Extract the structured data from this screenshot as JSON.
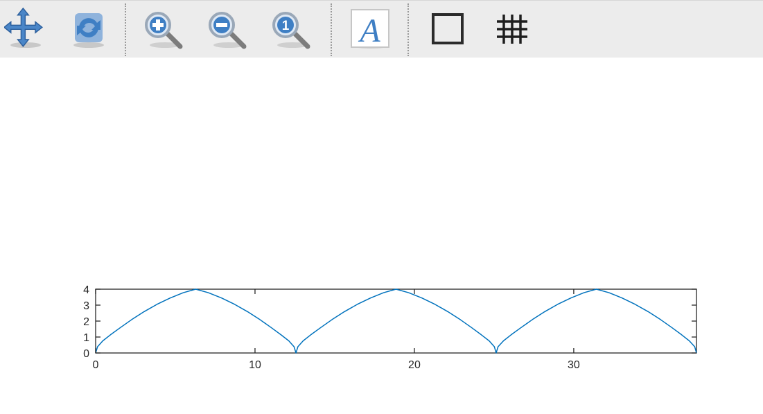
{
  "toolbar": {
    "tools": [
      {
        "id": "pan",
        "icon": "pan-arrows-icon"
      },
      {
        "id": "rotate",
        "icon": "rotate-arrows-icon"
      },
      {
        "id": "zoom-in",
        "icon": "zoom-in-icon"
      },
      {
        "id": "zoom-out",
        "icon": "zoom-out-icon"
      },
      {
        "id": "zoom-reset",
        "icon": "zoom-reset-icon",
        "label": "1"
      },
      {
        "id": "text",
        "icon": "text-tool-icon",
        "label": "A"
      },
      {
        "id": "box",
        "icon": "box-toggle-icon"
      },
      {
        "id": "grid",
        "icon": "grid-toggle-icon"
      }
    ]
  },
  "colors": {
    "line": "#0072bd",
    "axes": "#262626",
    "toolbar_bg": "#ececec",
    "icon_blue": "#3f7fc4"
  },
  "chart_data": {
    "type": "line",
    "title": "",
    "xlabel": "",
    "ylabel": "",
    "xlim": [
      0,
      37.7
    ],
    "ylim": [
      0,
      4
    ],
    "xticks": [
      0,
      10,
      20,
      30
    ],
    "yticks": [
      0,
      1,
      2,
      3,
      4
    ],
    "grid": false,
    "box": true,
    "series": [
      {
        "function": "cycloid: x = t - sin(t), y = 1 - cos(t), scaled by 2",
        "x": [
          0,
          0.12,
          0.45,
          0.93,
          1.55,
          2.26,
          3.04,
          3.85,
          4.68,
          5.5,
          6.28,
          7.07,
          7.9,
          8.72,
          9.53,
          10.31,
          11.02,
          11.63,
          12.12,
          12.45,
          12.57,
          12.69,
          13.02,
          13.5,
          14.12,
          14.83,
          15.61,
          16.42,
          17.25,
          18.07,
          18.85,
          19.64,
          20.47,
          21.29,
          22.1,
          22.88,
          23.59,
          24.2,
          24.69,
          25.02,
          25.13,
          25.25,
          25.59,
          26.07,
          26.69,
          27.4,
          28.18,
          28.99,
          29.82,
          30.64,
          31.42,
          32.21,
          33.03,
          33.85,
          34.67,
          35.45,
          36.16,
          36.77,
          37.25,
          37.59,
          37.7
        ],
        "y": [
          0,
          0.39,
          0.76,
          1.14,
          1.59,
          2.09,
          2.59,
          3.05,
          3.45,
          3.78,
          4.0,
          3.78,
          3.45,
          3.05,
          2.59,
          2.09,
          1.59,
          1.14,
          0.76,
          0.39,
          0,
          0.39,
          0.76,
          1.14,
          1.59,
          2.09,
          2.59,
          3.05,
          3.45,
          3.78,
          4.0,
          3.78,
          3.45,
          3.05,
          2.59,
          2.09,
          1.59,
          1.14,
          0.76,
          0.39,
          0,
          0.39,
          0.76,
          1.14,
          1.59,
          2.09,
          2.59,
          3.05,
          3.45,
          3.78,
          4.0,
          3.78,
          3.45,
          3.05,
          2.59,
          2.09,
          1.59,
          1.14,
          0.76,
          0.39,
          0
        ]
      }
    ]
  }
}
